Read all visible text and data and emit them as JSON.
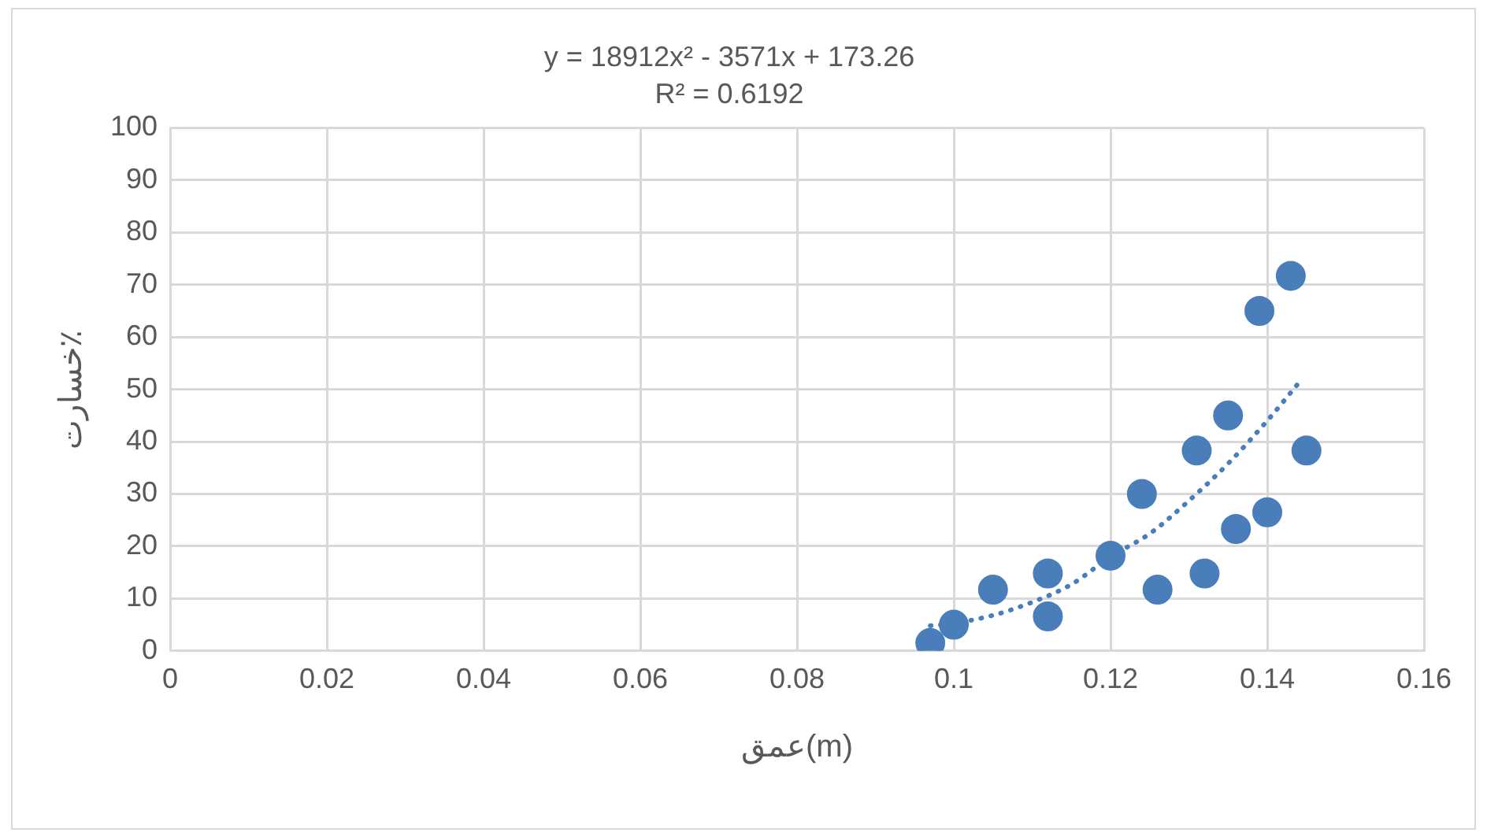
{
  "chart_data": {
    "type": "scatter",
    "title": "y = 18912x² - 3571x + 173.26",
    "subtitle": "R² = 0.6192",
    "xlabel": "عمق(m)",
    "ylabel": "خسارت٪",
    "xlim": [
      0,
      0.16
    ],
    "xticks": [
      0,
      0.02,
      0.04,
      0.06,
      0.08,
      0.1,
      0.12,
      0.14,
      0.16
    ],
    "ylim": [
      0,
      100
    ],
    "yticks": [
      0,
      10,
      20,
      30,
      40,
      50,
      60,
      70,
      80,
      90,
      100
    ],
    "grid": true,
    "legend": false,
    "series": [
      {
        "color": "#4a7ebb",
        "marker": "circle",
        "x": [
          0.097,
          0.1,
          0.105,
          0.112,
          0.112,
          0.12,
          0.124,
          0.126,
          0.131,
          0.132,
          0.135,
          0.136,
          0.139,
          0.14,
          0.143,
          0.145
        ],
        "values": [
          1.5,
          5,
          11.7,
          14.8,
          6.6,
          18.2,
          30,
          11.7,
          38.3,
          14.8,
          45,
          23.3,
          65,
          26.5,
          71.7,
          38.3
        ]
      },
      {
        "type": "line",
        "color": "#4a7ebb",
        "marker": "none",
        "line_style": "dotted",
        "x": [
          0.097,
          0.1,
          0.105,
          0.11,
          0.115,
          0.12,
          0.125,
          0.13,
          0.135,
          0.14,
          0.144
        ],
        "values": [
          4.8,
          5.3,
          6.8,
          9.3,
          12.7,
          18,
          22.4,
          28.7,
          35.8,
          44,
          51.2
        ]
      }
    ]
  }
}
